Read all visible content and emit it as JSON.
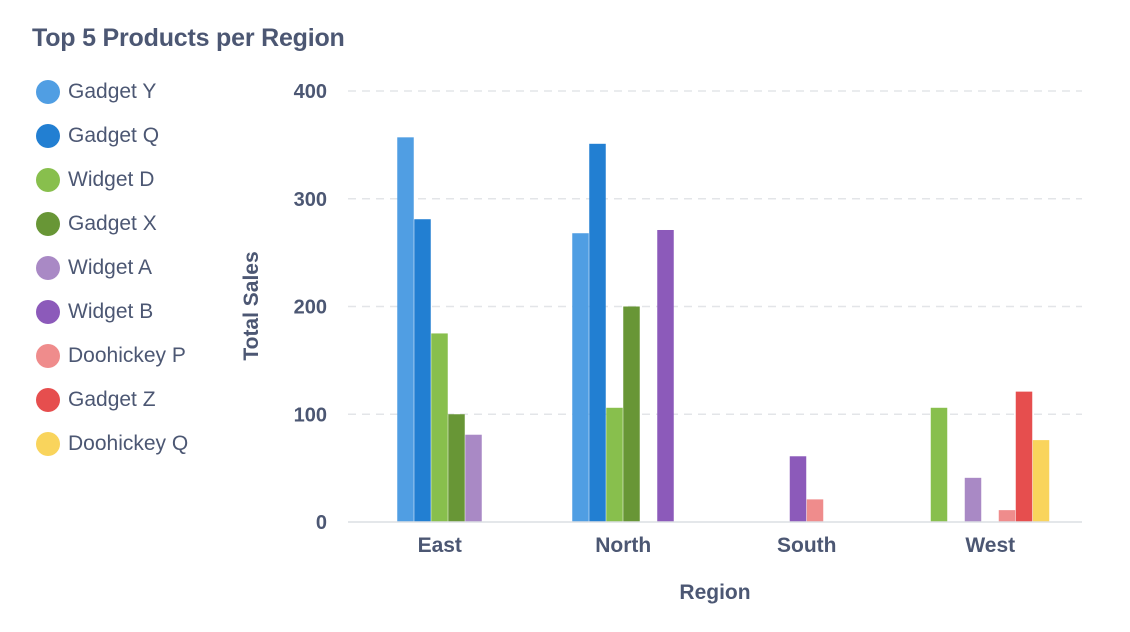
{
  "chart_data": {
    "type": "bar",
    "title": "Top 5 Products per Region",
    "xlabel": "Region",
    "ylabel": "Total Sales",
    "categories": [
      "East",
      "North",
      "South",
      "West"
    ],
    "ylim": [
      0,
      400
    ],
    "yticks": [
      "0",
      "100",
      "200",
      "300",
      "400"
    ],
    "grid": true,
    "legend_position": "left",
    "series": [
      {
        "name": "Gadget Y",
        "color": "#509ee3",
        "values": [
          357,
          268,
          null,
          null
        ]
      },
      {
        "name": "Gadget Q",
        "color": "#227fd2",
        "values": [
          281,
          351,
          null,
          null
        ]
      },
      {
        "name": "Widget D",
        "color": "#88bf4d",
        "values": [
          175,
          106,
          null,
          106
        ]
      },
      {
        "name": "Gadget X",
        "color": "#689636",
        "values": [
          100,
          200,
          null,
          null
        ]
      },
      {
        "name": "Widget A",
        "color": "#a989c5",
        "values": [
          81,
          null,
          null,
          41
        ]
      },
      {
        "name": "Widget B",
        "color": "#8c5aba",
        "values": [
          null,
          271,
          61,
          null
        ]
      },
      {
        "name": "Doohickey P",
        "color": "#ef8c8c",
        "values": [
          null,
          null,
          21,
          11
        ]
      },
      {
        "name": "Gadget Z",
        "color": "#e64e4e",
        "values": [
          null,
          null,
          null,
          121
        ]
      },
      {
        "name": "Doohickey Q",
        "color": "#f9d45c",
        "values": [
          null,
          null,
          null,
          76
        ]
      }
    ]
  }
}
